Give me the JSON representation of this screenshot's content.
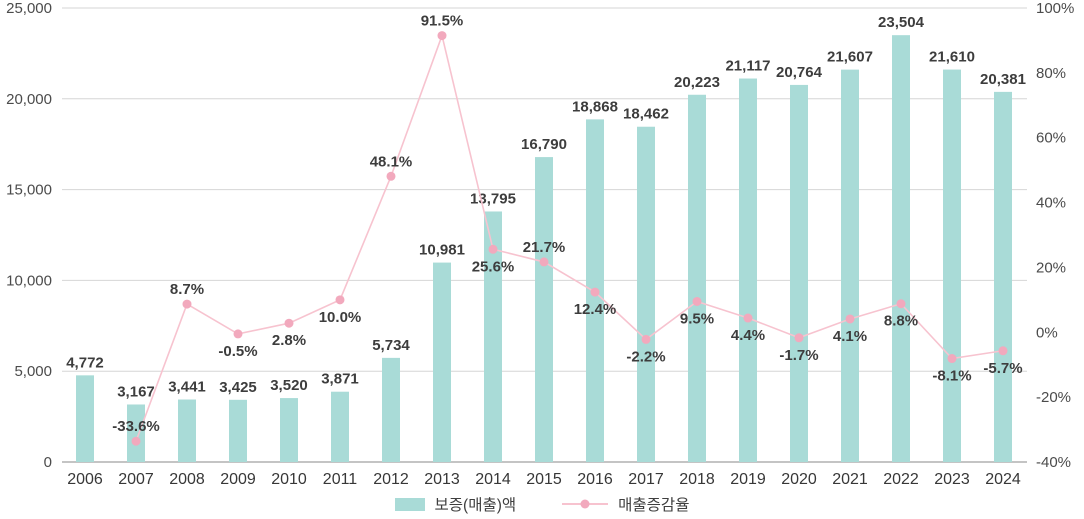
{
  "chart_data": {
    "type": "bar+line",
    "title": "",
    "categories": [
      "2006",
      "2007",
      "2008",
      "2009",
      "2010",
      "2011",
      "2012",
      "2013",
      "2014",
      "2015",
      "2016",
      "2017",
      "2018",
      "2019",
      "2020",
      "2021",
      "2022",
      "2023",
      "2024"
    ],
    "series": [
      {
        "name": "보증(매출)액",
        "type": "bar",
        "axis": "left",
        "color": "#a9dbd7",
        "values": [
          4772,
          3167,
          3441,
          3425,
          3520,
          3871,
          5734,
          10981,
          13795,
          16790,
          18868,
          18462,
          20223,
          21117,
          20764,
          21607,
          23504,
          21610,
          20381
        ],
        "labels": [
          "4,772",
          "3,167",
          "3,441",
          "3,425",
          "3,520",
          "3,871",
          "5,734",
          "10,981",
          "13,795",
          "16,790",
          "18,868",
          "18,462",
          "20,223",
          "21,117",
          "20,764",
          "21,607",
          "23,504",
          "21,610",
          "20,381"
        ]
      },
      {
        "name": "매출증감율",
        "type": "line",
        "axis": "right",
        "color": "#f7c3cf",
        "dot_color": "#f2a9bd",
        "values": [
          null,
          -33.6,
          8.7,
          -0.5,
          2.8,
          10.0,
          48.1,
          91.5,
          25.6,
          21.7,
          12.4,
          -2.2,
          9.5,
          4.4,
          -1.7,
          4.1,
          8.8,
          -8.1,
          -5.7
        ],
        "labels": [
          null,
          "-33.6%",
          "8.7%",
          "-0.5%",
          "2.8%",
          "10.0%",
          "48.1%",
          "91.5%",
          "25.6%",
          "21.7%",
          "12.4%",
          "-2.2%",
          "9.5%",
          "4.4%",
          "-1.7%",
          "4.1%",
          "8.8%",
          "-8.1%",
          "-5.7%"
        ],
        "label_positions": [
          null,
          "above",
          "above",
          "below",
          "below",
          "below",
          "above",
          "above",
          "below",
          "above",
          "below",
          "below",
          "below",
          "below",
          "below",
          "below",
          "below",
          "below",
          "below"
        ]
      }
    ],
    "left_axis": {
      "min": 0,
      "max": 25000,
      "step": 5000,
      "tick_labels": [
        "0",
        "5,000",
        "10,000",
        "15,000",
        "20,000",
        "25,000"
      ]
    },
    "right_axis": {
      "min": -40,
      "max": 100,
      "step": 20,
      "tick_labels": [
        "-40%",
        "-20%",
        "0%",
        "20%",
        "40%",
        "60%",
        "80%",
        "100%"
      ]
    },
    "grid": true,
    "legend_position": "bottom-center",
    "legend": [
      {
        "label": "보증(매출)액",
        "type": "bar"
      },
      {
        "label": "매출증감율",
        "type": "line"
      }
    ],
    "colors": {
      "bar": "#a9dbd7",
      "line": "#f7c3cf",
      "line_dot": "#f2a9bd",
      "grid_line": "#d6d6d6",
      "zero_axis": "#b0b0b0",
      "data_label": "#3d3d3d",
      "tick_text": "#4b4b4b"
    }
  }
}
